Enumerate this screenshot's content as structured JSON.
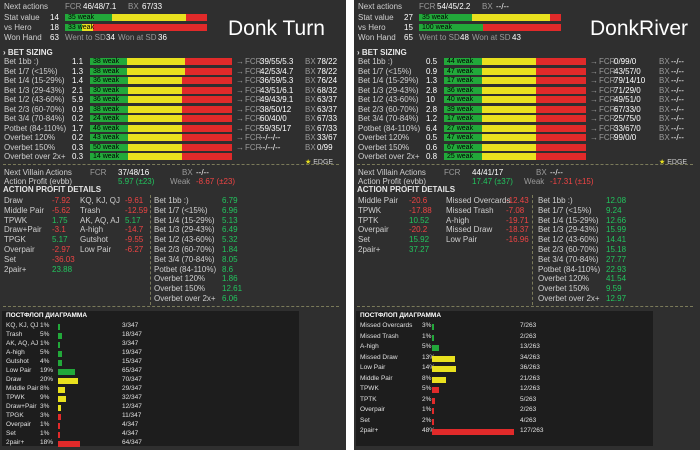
{
  "left": {
    "title": "Donk Turn",
    "top": [
      {
        "label": "Next actions",
        "v": "",
        "fcr": "FCR",
        "fcrv": "46/48/7.1",
        "bx": "BX",
        "bxv": "67/33"
      },
      {
        "label": "Stat value",
        "v": "14",
        "bar": "35 weak",
        "segs": [
          0.33,
          0.52,
          0.15
        ]
      },
      {
        "label": "vs Hero",
        "v": "18",
        "bar": "33 weak",
        "segs": [
          0.12,
          0.08,
          0.8
        ]
      },
      {
        "label": "Won Hand",
        "v": "63",
        "sdw": "Went to SD",
        "sdwv": "34",
        "was": "Won at SD",
        "wasv": "36"
      }
    ],
    "bet_header": "BET SIZING",
    "bets": [
      {
        "label": "Bet 1bb :)",
        "v": "1.1",
        "bar": "38 weak",
        "segs": [
          0.26,
          0.41,
          0.33
        ],
        "fcr": "39/55/5.3",
        "bx": "78/22"
      },
      {
        "label": "Bet 1/7 (<15%)",
        "v": "1.3",
        "bar": "38 weak",
        "segs": [
          0.26,
          0.41,
          0.33
        ],
        "fcr": "42/53/4.7",
        "bx": "78/22"
      },
      {
        "label": "Bet 1/4 (15-29%)",
        "v": "1.4",
        "bar": "36 weak",
        "segs": [
          0.27,
          0.38,
          0.35
        ],
        "fcr": "36/59/5.3",
        "bx": "76/24"
      },
      {
        "label": "Bet 1/3 (29-43%)",
        "v": "2.1",
        "bar": "30 weak",
        "segs": [
          0.27,
          0.38,
          0.35
        ],
        "fcr": "43/51/6.1",
        "bx": "68/32"
      },
      {
        "label": "Bet 1/2 (43-60%)",
        "v": "5.9",
        "bar": "36 weak",
        "segs": [
          0.27,
          0.38,
          0.35
        ],
        "fcr": "49/43/9.1",
        "bx": "63/37"
      },
      {
        "label": "Bet 2/3 (60-70%)",
        "v": "0.9",
        "bar": "38 weak",
        "segs": [
          0.27,
          0.38,
          0.35
        ],
        "fcr": "38/50/12",
        "bx": "63/37"
      },
      {
        "label": "Bet 3/4 (70-84%)",
        "v": "0.2",
        "bar": "24 weak",
        "segs": [
          0.27,
          0.38,
          0.35
        ],
        "fcr": "60/40/0",
        "bx": "67/33"
      },
      {
        "label": "Potbet (84-110%)",
        "v": "1.7",
        "bar": "46 weak",
        "segs": [
          0.27,
          0.38,
          0.35
        ],
        "fcr": "59/35/17",
        "bx": "67/33"
      },
      {
        "label": "Overbet 120%",
        "v": "0.2",
        "bar": "43 weak",
        "segs": [
          0.27,
          0.38,
          0.35
        ],
        "fcr": "--/--/--",
        "bx": "33/67"
      },
      {
        "label": "Overbet 150%",
        "v": "0.3",
        "bar": "50 weak",
        "segs": [
          0.27,
          0.38,
          0.35
        ],
        "fcr": "--/--/--",
        "bx": "0/99"
      },
      {
        "label": "Overbet over 2x+",
        "v": "0.3",
        "bar": "14 weak",
        "segs": [
          0.27,
          0.38,
          0.35
        ],
        "fcr": "",
        "bx": ""
      }
    ],
    "edge": "EDGE",
    "nva": {
      "label": "Next Villain Actions",
      "fcr": "FCR",
      "fcrv": "37/48/16",
      "bx": "BX",
      "bxv": "--/--",
      "ap": "Action Profit (evbb)",
      "apv": "5.97 (±23)",
      "weak": "Weak",
      "weakv": "-8.67 (±23)"
    },
    "apd_header": "ACTION PROFIT DETAILS",
    "apd": [
      [
        "Draw",
        "-7.92",
        "KQ, KJ, QJ",
        "-9.61",
        "Bet 1bb :)",
        "6.79"
      ],
      [
        "Middle Pair",
        "-5.62",
        "Trash",
        "-12.59",
        "Bet 1/7 (<15%)",
        "6.96"
      ],
      [
        "TPWK",
        "1.75",
        "AK, AQ, AJ",
        "5.17",
        "Bet 1/4 (15-29%)",
        "5.13"
      ],
      [
        "Draw+Pair",
        "-3.1",
        "A-high",
        "-14.7",
        "Bet 1/3 (29-43%)",
        "6.49"
      ],
      [
        "TPGK",
        "5.17",
        "Gutshot",
        "-9.55",
        "Bet 1/2 (43-60%)",
        "5.32"
      ],
      [
        "Overpair",
        "-2.97",
        "Low Pair",
        "-6.27",
        "Bet 2/3 (60-70%)",
        "1.84"
      ],
      [
        "Set",
        "-36.03",
        "",
        "",
        "Bet 3/4 (70-84%)",
        "8.05"
      ],
      [
        "2pair+",
        "23.88",
        "",
        "",
        "Potbet (84-110%)",
        "8.6"
      ],
      [
        "",
        "",
        "",
        "",
        "Overbet 120%",
        "1.86"
      ],
      [
        "",
        "",
        "",
        "",
        "Overbet 150%",
        "12.61"
      ],
      [
        "",
        "",
        "",
        "",
        "Overbet over 2x+",
        "6.06"
      ]
    ],
    "pf_header": "ПОСТФЛОП ДИАГРАММА",
    "pf": [
      {
        "l": "KQ, KJ, QJ",
        "p": "1%",
        "c": "3/347",
        "w": 0.02,
        "col": "#22a83a"
      },
      {
        "l": "Trash",
        "p": "5%",
        "c": "18/347",
        "w": 0.07,
        "col": "#22a83a"
      },
      {
        "l": "AK, AQ, AJ",
        "p": "1%",
        "c": "3/347",
        "w": 0.02,
        "col": "#22a83a"
      },
      {
        "l": "A-high",
        "p": "5%",
        "c": "19/347",
        "w": 0.07,
        "col": "#22a83a"
      },
      {
        "l": "Gutshot",
        "p": "4%",
        "c": "15/347",
        "w": 0.06,
        "col": "#22a83a"
      },
      {
        "l": "Low Pair",
        "p": "19%",
        "c": "65/347",
        "w": 0.28,
        "col": "#22a83a"
      },
      {
        "l": "Draw",
        "p": "20%",
        "c": "70/347",
        "w": 0.34,
        "col": "#e9e11e"
      },
      {
        "l": "Middle Pair",
        "p": "8%",
        "c": "29/347",
        "w": 0.12,
        "col": "#e9e11e"
      },
      {
        "l": "TPWK",
        "p": "9%",
        "c": "32/347",
        "w": 0.14,
        "col": "#e9e11e"
      },
      {
        "l": "Draw+Pair",
        "p": "3%",
        "c": "12/347",
        "w": 0.05,
        "col": "#e9e11e"
      },
      {
        "l": "TPGK",
        "p": "3%",
        "c": "11/347",
        "w": 0.05,
        "col": "#e12a2a"
      },
      {
        "l": "Overpair",
        "p": "1%",
        "c": "4/347",
        "w": 0.02,
        "col": "#e12a2a"
      },
      {
        "l": "Set",
        "p": "1%",
        "c": "4/347",
        "w": 0.02,
        "col": "#e12a2a"
      },
      {
        "l": "2pair+",
        "p": "18%",
        "c": "64/347",
        "w": 0.37,
        "col": "#e12a2a"
      }
    ]
  },
  "right": {
    "title": "DonkRiver",
    "top": [
      {
        "label": "Next actions",
        "v": "",
        "fcr": "FCR",
        "fcrv": "54/45/2.2",
        "bx": "BX",
        "bxv": "--/--"
      },
      {
        "label": "Stat value",
        "v": "27",
        "bar": "35 weak",
        "segs": [
          0.37,
          0.55,
          0.08
        ]
      },
      {
        "label": "vs Hero",
        "v": "15",
        "bar": "100 weak",
        "segs": [
          0.45,
          0.0,
          0.55
        ]
      },
      {
        "label": "Won Hand",
        "v": "65",
        "sdw": "Went to SD",
        "sdwv": "48",
        "was": "Won at SD",
        "wasv": "43"
      }
    ],
    "bet_header": "BET SIZING",
    "bets": [
      {
        "label": "Bet 1bb :)",
        "v": "0.5",
        "bar": "44 weak",
        "segs": [
          0.27,
          0.38,
          0.35
        ],
        "fcr": "0/99/0",
        "bx": "--/--"
      },
      {
        "label": "Bet 1/7 (<15%)",
        "v": "0.9",
        "bar": "47 weak",
        "segs": [
          0.27,
          0.38,
          0.35
        ],
        "fcr": "43/57/0",
        "bx": "--/--"
      },
      {
        "label": "Bet 1/4 (15-29%)",
        "v": "1.3",
        "bar": "17 weak",
        "segs": [
          0.27,
          0.38,
          0.35
        ],
        "fcr": "79/14/10",
        "bx": "--/--"
      },
      {
        "label": "Bet 1/3 (29-43%)",
        "v": "2.8",
        "bar": "36 weak",
        "segs": [
          0.27,
          0.38,
          0.35
        ],
        "fcr": "71/29/0",
        "bx": "--/--"
      },
      {
        "label": "Bet 1/2 (43-60%)",
        "v": "10",
        "bar": "40 weak",
        "segs": [
          0.27,
          0.38,
          0.35
        ],
        "fcr": "49/51/0",
        "bx": "--/--"
      },
      {
        "label": "Bet 2/3 (60-70%)",
        "v": "2.8",
        "bar": "39 weak",
        "segs": [
          0.27,
          0.38,
          0.35
        ],
        "fcr": "67/33/0",
        "bx": "--/--"
      },
      {
        "label": "Bet 3/4 (70-84%)",
        "v": "1.2",
        "bar": "17 weak",
        "segs": [
          0.27,
          0.38,
          0.35
        ],
        "fcr": "25/75/0",
        "bx": "--/--"
      },
      {
        "label": "Potbet (84-110%)",
        "v": "6.4",
        "bar": "27 weak",
        "segs": [
          0.27,
          0.38,
          0.35
        ],
        "fcr": "33/67/0",
        "bx": "--/--"
      },
      {
        "label": "Overbet 120%",
        "v": "0.5",
        "bar": "47 weak",
        "segs": [
          0.27,
          0.38,
          0.35
        ],
        "fcr": "99/0/0",
        "bx": "--/--"
      },
      {
        "label": "Overbet 150%",
        "v": "0.6",
        "bar": "67 weak",
        "segs": [
          0.27,
          0.38,
          0.35
        ],
        "fcr": "",
        "bx": ""
      },
      {
        "label": "Overbet over 2x+",
        "v": "0.8",
        "bar": "25 weak",
        "segs": [
          0.27,
          0.38,
          0.35
        ],
        "fcr": "",
        "bx": ""
      }
    ],
    "edge": "EDGE",
    "nva": {
      "label": "Next Villain Actions",
      "fcr": "FCR",
      "fcrv": "44/41/17",
      "bx": "BX",
      "bxv": "--/--",
      "ap": "Action Profit (evbb)",
      "apv": "17.47 (±37)",
      "weak": "Weak",
      "weakv": "-17.31 (±15)"
    },
    "apd_header": "ACTION PROFIT DETAILS",
    "apd": [
      [
        "Middle Pair",
        "-20.6",
        "Missed Overcards",
        "-12.43",
        "Bet 1bb :)",
        "12.08"
      ],
      [
        "TPWK",
        "-17.88",
        "Missed Trash",
        "-7.08",
        "Bet 1/7 (<15%)",
        "9.24"
      ],
      [
        "TPTK",
        "10.52",
        "A-high",
        "-19.71",
        "Bet 1/4 (15-29%)",
        "12.66"
      ],
      [
        "Overpair",
        "-20.2",
        "Missed Draw",
        "-18.37",
        "Bet 1/3 (29-43%)",
        "15.99"
      ],
      [
        "Set",
        "15.92",
        "Low Pair",
        "-16.96",
        "Bet 1/2 (43-60%)",
        "14.41"
      ],
      [
        "2pair+",
        "37.27",
        "",
        "",
        "Bet 2/3 (60-70%)",
        "15.18"
      ],
      [
        "",
        "",
        "",
        "",
        "Bet 3/4 (70-84%)",
        "27.77"
      ],
      [
        "",
        "",
        "",
        "",
        "Potbet (84-110%)",
        "22.93"
      ],
      [
        "",
        "",
        "",
        "",
        "Overbet 120%",
        "41.54"
      ],
      [
        "",
        "",
        "",
        "",
        "Overbet 150%",
        "9.59"
      ],
      [
        "",
        "",
        "",
        "",
        "Overbet over 2x+",
        "12.97"
      ]
    ],
    "pf_header": "ПОСТФЛОП ДИАГРАММА",
    "pf": [
      {
        "l": "Missed Overcards",
        "p": "3%",
        "c": "7/263",
        "w": 0.03,
        "col": "#22a83a"
      },
      {
        "l": "Missed Trash",
        "p": "1%",
        "c": "2/263",
        "w": 0.02,
        "col": "#22a83a"
      },
      {
        "l": "A-high",
        "p": "5%",
        "c": "13/263",
        "w": 0.08,
        "col": "#22a83a"
      },
      {
        "l": "Missed Draw",
        "p": "13%",
        "c": "34/263",
        "w": 0.28,
        "col": "#e9e11e"
      },
      {
        "l": "Low Pair",
        "p": "14%",
        "c": "36/263",
        "w": 0.29,
        "col": "#e9e11e"
      },
      {
        "l": "Middle Pair",
        "p": "8%",
        "c": "21/263",
        "w": 0.17,
        "col": "#e9e11e"
      },
      {
        "l": "TPWK",
        "p": "5%",
        "c": "12/263",
        "w": 0.09,
        "col": "#e12a2a"
      },
      {
        "l": "TPTK",
        "p": "2%",
        "c": "5/263",
        "w": 0.04,
        "col": "#e12a2a"
      },
      {
        "l": "Overpair",
        "p": "1%",
        "c": "2/263",
        "w": 0.02,
        "col": "#e12a2a"
      },
      {
        "l": "Set",
        "p": "2%",
        "c": "4/263",
        "w": 0.03,
        "col": "#e12a2a"
      },
      {
        "l": "2pair+",
        "p": "48%",
        "c": "127/263",
        "w": 1.0,
        "col": "#e12a2a"
      }
    ]
  }
}
